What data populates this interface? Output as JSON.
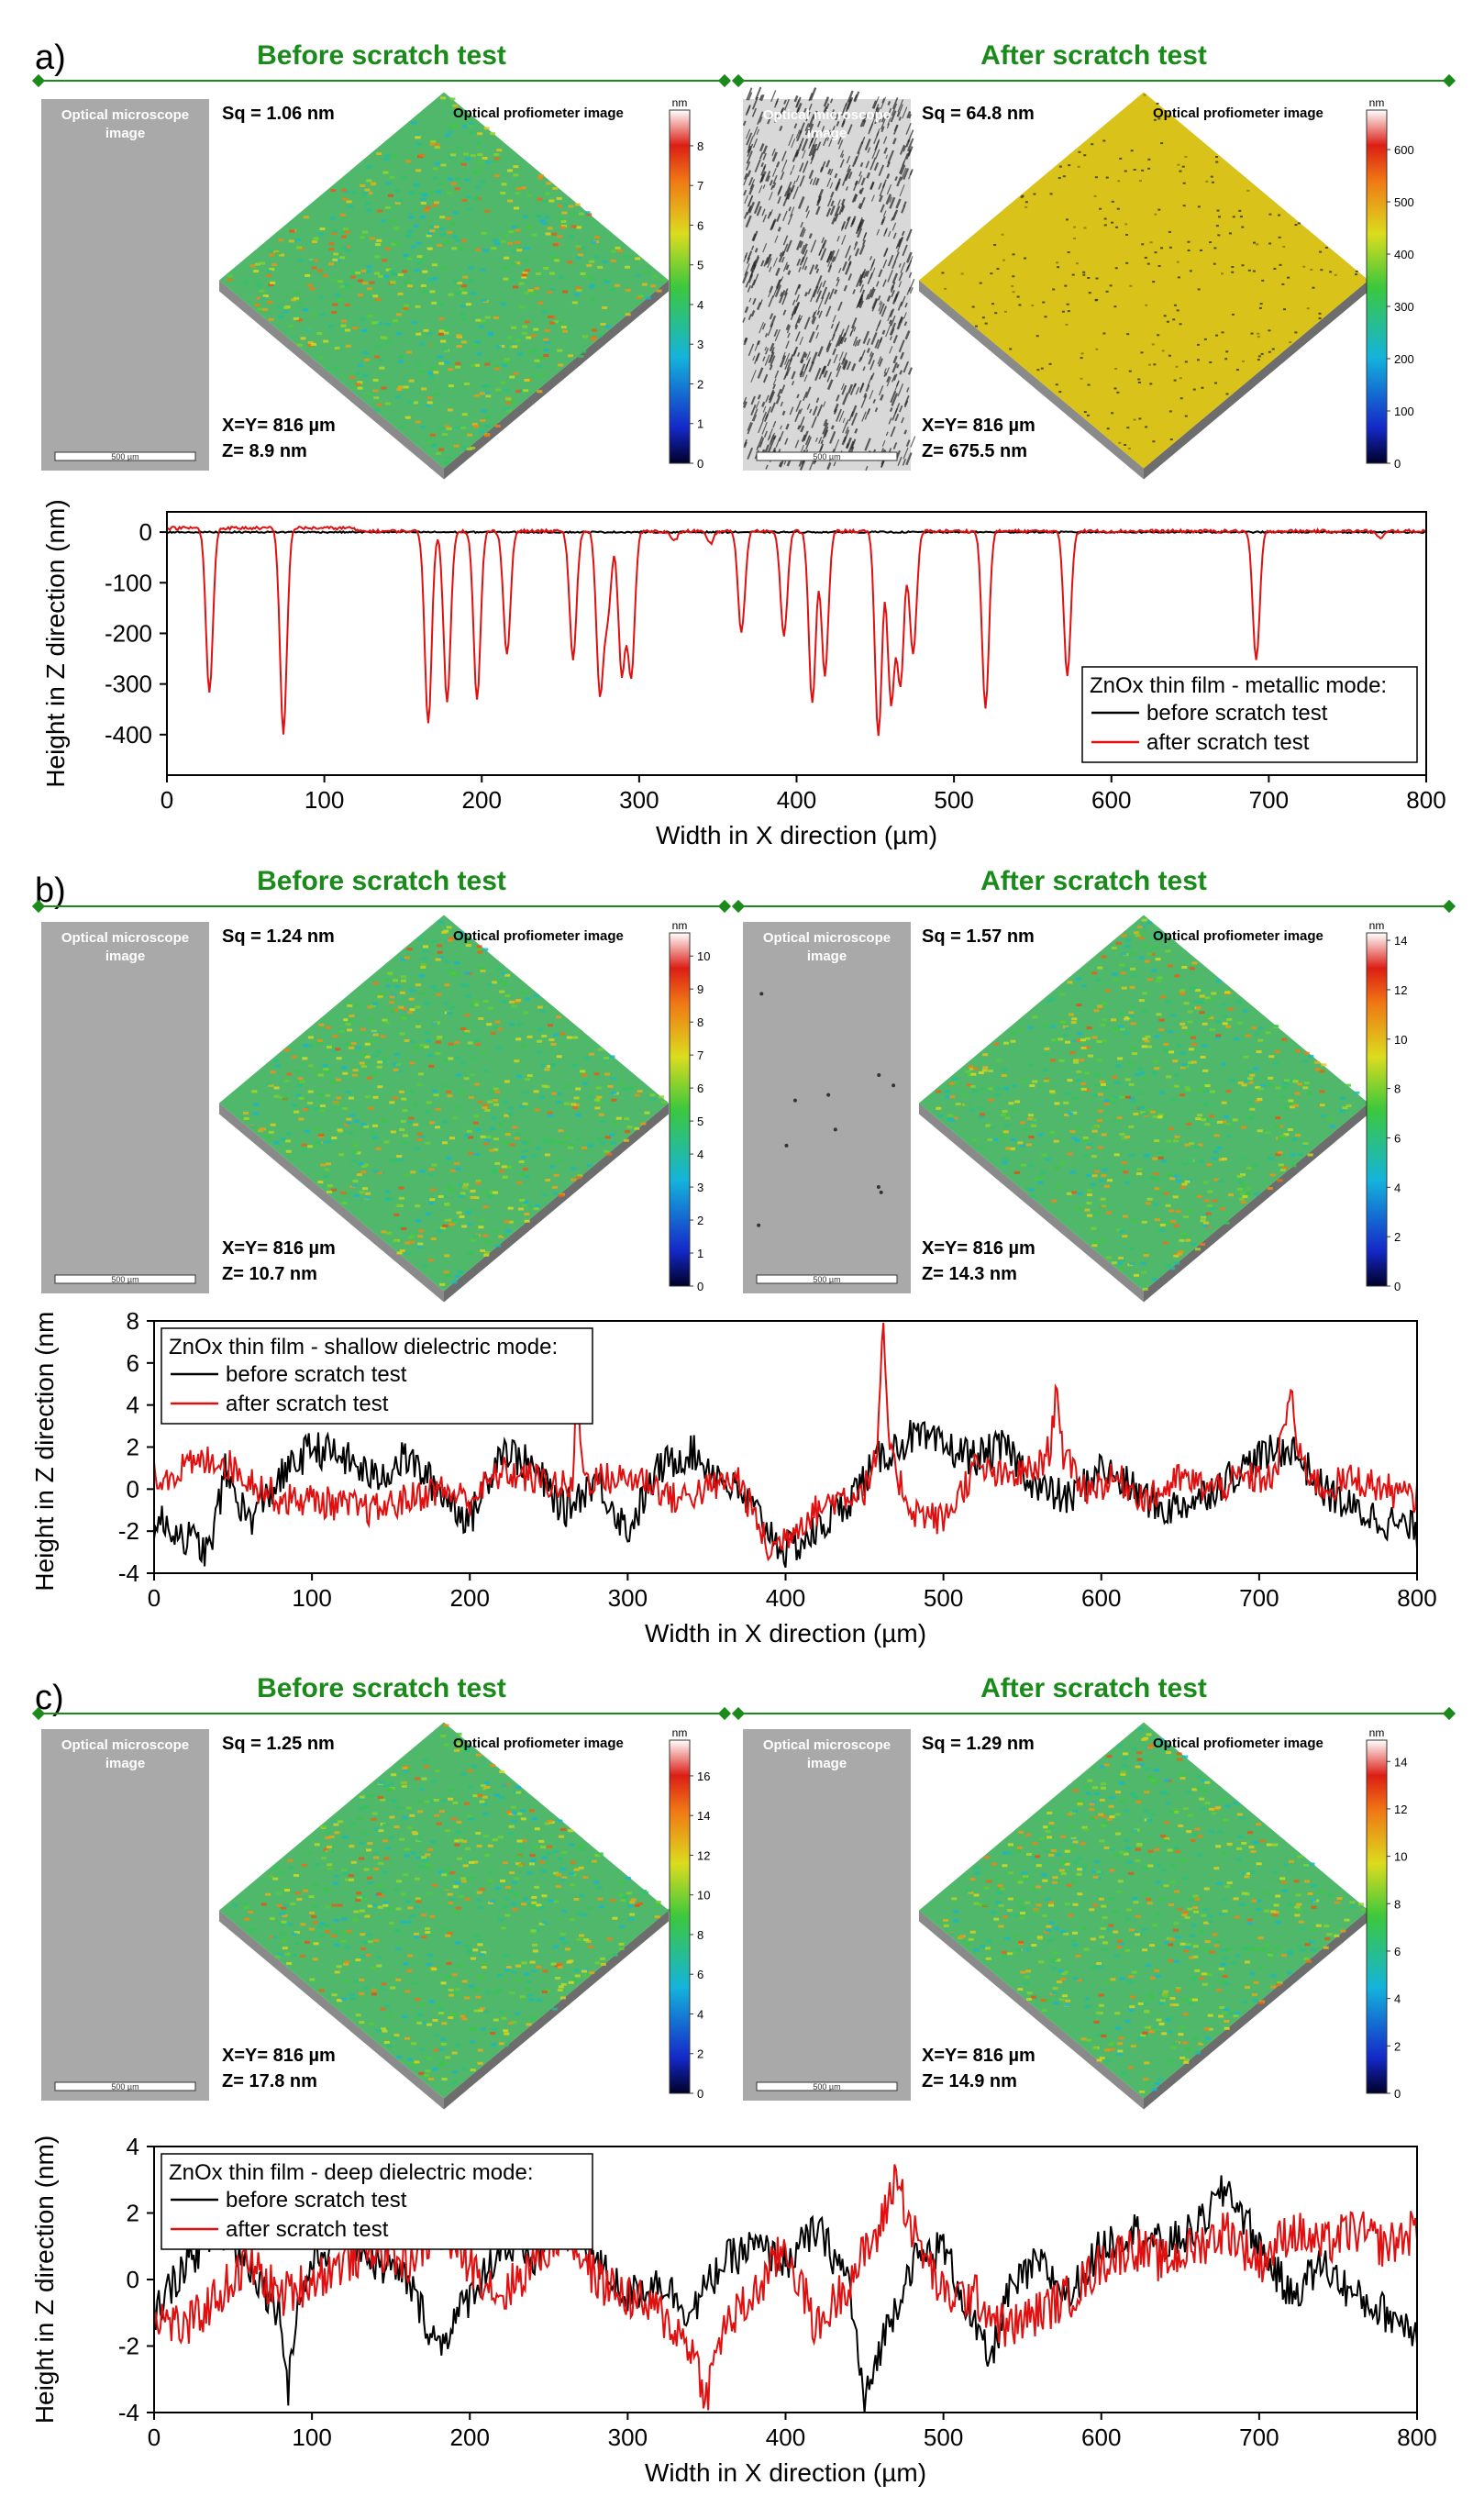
{
  "panels": [
    {
      "label": "a)",
      "before": {
        "heading": "Before scratch test",
        "micro_label": "Optical microscope image",
        "scalebar": "500 µm",
        "sq": "Sq = 1.06 nm",
        "profilo_label": "Optical profiometer image",
        "xy": "X=Y= 816 µm",
        "z": "Z= 8.9 nm",
        "cb_unit": "nm",
        "cb_ticks": [
          "0",
          "1",
          "2",
          "3",
          "4",
          "5",
          "6",
          "7",
          "8"
        ],
        "cb_max": 8.9,
        "micro_style": "plain",
        "surface_style": "rainbow"
      },
      "after": {
        "heading": "After scratch test",
        "micro_label": "Optical microscope image",
        "scalebar": "500 µm",
        "sq": "Sq = 64.8 nm",
        "profilo_label": "Optical profiometer image",
        "xy": "X=Y= 816 µm",
        "z": "Z= 675.5 nm",
        "cb_unit": "nm",
        "cb_ticks": [
          "0",
          "100",
          "200",
          "300",
          "400",
          "500",
          "600"
        ],
        "cb_max": 675.5,
        "micro_style": "scratched",
        "surface_style": "yellow"
      }
    },
    {
      "label": "b)",
      "before": {
        "heading": "Before scratch test",
        "micro_label": "Optical microscope image",
        "scalebar": "500 µm",
        "sq": "Sq = 1.24 nm",
        "profilo_label": "Optical profiometer image",
        "xy": "X=Y= 816 µm",
        "z": "Z= 10.7 nm",
        "cb_unit": "nm",
        "cb_ticks": [
          "0",
          "1",
          "2",
          "3",
          "4",
          "5",
          "6",
          "7",
          "8",
          "9",
          "10"
        ],
        "cb_max": 10.7,
        "micro_style": "plain",
        "surface_style": "rainbow"
      },
      "after": {
        "heading": "After scratch test",
        "micro_label": "Optical microscope image",
        "scalebar": "500 µm",
        "sq": "Sq = 1.57 nm",
        "profilo_label": "Optical profiometer image",
        "xy": "X=Y= 816 µm",
        "z": "Z= 14.3 nm",
        "cb_unit": "nm",
        "cb_ticks": [
          "0",
          "2",
          "4",
          "6",
          "8",
          "10",
          "12",
          "14"
        ],
        "cb_max": 14.3,
        "micro_style": "specks",
        "surface_style": "rainbow"
      }
    },
    {
      "label": "c)",
      "before": {
        "heading": "Before scratch test",
        "micro_label": "Optical microscope image",
        "scalebar": "500 µm",
        "sq": "Sq = 1.25 nm",
        "profilo_label": "Optical profiometer image",
        "xy": "X=Y= 816 µm",
        "z": "Z= 17.8 nm",
        "cb_unit": "nm",
        "cb_ticks": [
          "0",
          "2",
          "4",
          "6",
          "8",
          "10",
          "12",
          "14",
          "16"
        ],
        "cb_max": 17.8,
        "micro_style": "plain",
        "surface_style": "rainbow"
      },
      "after": {
        "heading": "After scratch test",
        "micro_label": "Optical microscope image",
        "scalebar": "500 µm",
        "sq": "Sq = 1.29 nm",
        "profilo_label": "Optical profiometer image",
        "xy": "X=Y= 816 µm",
        "z": "Z= 14.9 nm",
        "cb_unit": "nm",
        "cb_ticks": [
          "0",
          "2",
          "4",
          "6",
          "8",
          "10",
          "12",
          "14"
        ],
        "cb_max": 14.9,
        "micro_style": "plain",
        "surface_style": "rainbow"
      }
    }
  ],
  "colors": {
    "heading_green": "#1a8a1a",
    "before_line": "#000000",
    "after_line": "#e01010"
  },
  "chart_data": [
    {
      "type": "line",
      "title": "",
      "xlabel": "Width in X direction (µm)",
      "ylabel": "Height in Z direction (nm)",
      "xlim": [
        0,
        800
      ],
      "ylim": [
        -480,
        40
      ],
      "xticks": [
        0,
        100,
        200,
        300,
        400,
        500,
        600,
        700,
        800
      ],
      "yticks": [
        0,
        -100,
        -200,
        -300,
        -400
      ],
      "legend_title": "ZnOx thin film - metallic mode:",
      "legend_position": "bottom-right",
      "series": [
        {
          "name": "before scratch test",
          "color": "#000000",
          "baseline": 0,
          "noise": 1.5,
          "peaks": []
        },
        {
          "name": "after scratch test",
          "color": "#e01010",
          "baseline": 8,
          "noise": 3,
          "peaks": [
            [
              27,
              -325
            ],
            [
              74,
              -405
            ],
            [
              166,
              -380
            ],
            [
              178,
              -340
            ],
            [
              197,
              -335
            ],
            [
              216,
              -245
            ],
            [
              258,
              -255
            ],
            [
              275,
              -315
            ],
            [
              280,
              -160
            ],
            [
              289,
              -280
            ],
            [
              295,
              -285
            ],
            [
              322,
              -20
            ],
            [
              345,
              -25
            ],
            [
              365,
              -200
            ],
            [
              392,
              -205
            ],
            [
              410,
              -340
            ],
            [
              418,
              -285
            ],
            [
              452,
              -405
            ],
            [
              460,
              -335
            ],
            [
              466,
              -300
            ],
            [
              474,
              -245
            ],
            [
              520,
              -350
            ],
            [
              572,
              -285
            ],
            [
              692,
              -255
            ],
            [
              771,
              -15
            ]
          ]
        }
      ]
    },
    {
      "type": "line",
      "title": "",
      "xlabel": "Width in X direction (µm)",
      "ylabel": "Height in Z direction (nm)",
      "xlim": [
        0,
        800
      ],
      "ylim": [
        -4,
        8
      ],
      "xticks": [
        0,
        100,
        200,
        300,
        400,
        500,
        600,
        700,
        800
      ],
      "yticks": [
        -4,
        -2,
        0,
        2,
        4,
        6,
        8
      ],
      "legend_title": "ZnOx thin film - shallow dielectric mode:",
      "legend_position": "top-left",
      "series": [
        {
          "name": "before scratch test",
          "color": "#000000",
          "anchors": [
            [
              0,
              -1.5
            ],
            [
              15,
              -2
            ],
            [
              35,
              -3
            ],
            [
              45,
              0.8
            ],
            [
              60,
              -1.5
            ],
            [
              80,
              0.5
            ],
            [
              100,
              2
            ],
            [
              120,
              1.5
            ],
            [
              140,
              0.5
            ],
            [
              160,
              1.5
            ],
            [
              180,
              0
            ],
            [
              200,
              -1.5
            ],
            [
              220,
              2
            ],
            [
              240,
              1
            ],
            [
              260,
              -1
            ],
            [
              280,
              0.5
            ],
            [
              300,
              -2
            ],
            [
              320,
              1
            ],
            [
              340,
              1.8
            ],
            [
              360,
              0.5
            ],
            [
              380,
              -1
            ],
            [
              400,
              -3
            ],
            [
              420,
              -2
            ],
            [
              440,
              -0.5
            ],
            [
              460,
              1.5
            ],
            [
              480,
              2.5
            ],
            [
              500,
              2
            ],
            [
              520,
              1.5
            ],
            [
              540,
              2
            ],
            [
              560,
              0
            ],
            [
              580,
              -0.5
            ],
            [
              600,
              1
            ],
            [
              620,
              0
            ],
            [
              640,
              -1
            ],
            [
              660,
              -0.5
            ],
            [
              680,
              0.5
            ],
            [
              700,
              1.5
            ],
            [
              720,
              2
            ],
            [
              740,
              0
            ],
            [
              760,
              -1
            ],
            [
              780,
              -1.5
            ],
            [
              800,
              -2
            ]
          ],
          "noise": 0.9
        },
        {
          "name": "after scratch test",
          "color": "#e01010",
          "anchors": [
            [
              0,
              0.5
            ],
            [
              20,
              1
            ],
            [
              40,
              1.5
            ],
            [
              60,
              0.5
            ],
            [
              80,
              -0.5
            ],
            [
              100,
              -0.5
            ],
            [
              120,
              -0.8
            ],
            [
              140,
              -1
            ],
            [
              160,
              -0.5
            ],
            [
              180,
              0
            ],
            [
              200,
              -0.5
            ],
            [
              220,
              0.8
            ],
            [
              240,
              0.5
            ],
            [
              265,
              0
            ],
            [
              268,
              5.2
            ],
            [
              272,
              0.5
            ],
            [
              290,
              0.5
            ],
            [
              310,
              0.5
            ],
            [
              330,
              -0.5
            ],
            [
              350,
              0
            ],
            [
              370,
              0.5
            ],
            [
              390,
              -3
            ],
            [
              410,
              -1.5
            ],
            [
              430,
              -0.5
            ],
            [
              450,
              0
            ],
            [
              458,
              1.5
            ],
            [
              462,
              7.8
            ],
            [
              466,
              1.5
            ],
            [
              480,
              -1
            ],
            [
              500,
              -1.5
            ],
            [
              520,
              1
            ],
            [
              540,
              0.5
            ],
            [
              560,
              1
            ],
            [
              568,
              2
            ],
            [
              572,
              5.2
            ],
            [
              576,
              1.5
            ],
            [
              590,
              0
            ],
            [
              610,
              0.5
            ],
            [
              630,
              -0.5
            ],
            [
              650,
              0.5
            ],
            [
              670,
              0
            ],
            [
              690,
              0.5
            ],
            [
              710,
              0.5
            ],
            [
              720,
              4.8
            ],
            [
              725,
              1.5
            ],
            [
              740,
              0
            ],
            [
              760,
              0.5
            ],
            [
              780,
              0
            ],
            [
              800,
              -0.5
            ]
          ],
          "noise": 0.8
        }
      ]
    },
    {
      "type": "line",
      "title": "",
      "xlabel": "Width in X direction (µm)",
      "ylabel": "Height in Z direction (nm)",
      "xlim": [
        0,
        800
      ],
      "ylim": [
        -4,
        4
      ],
      "xticks": [
        0,
        100,
        200,
        300,
        400,
        500,
        600,
        700,
        800
      ],
      "yticks": [
        -4,
        -2,
        0,
        2,
        4
      ],
      "legend_title": "ZnOx thin film - deep dielectric mode:",
      "legend_position": "top-left",
      "series": [
        {
          "name": "before scratch test",
          "color": "#000000",
          "anchors": [
            [
              0,
              -1
            ],
            [
              20,
              0.5
            ],
            [
              40,
              1.5
            ],
            [
              60,
              0.5
            ],
            [
              80,
              -1
            ],
            [
              85,
              -3.2
            ],
            [
              90,
              -1
            ],
            [
              100,
              0.5
            ],
            [
              120,
              1.5
            ],
            [
              140,
              0.5
            ],
            [
              160,
              0
            ],
            [
              180,
              -2
            ],
            [
              200,
              -0.5
            ],
            [
              220,
              1
            ],
            [
              240,
              0.5
            ],
            [
              260,
              2.5
            ],
            [
              280,
              0.5
            ],
            [
              300,
              -0.5
            ],
            [
              320,
              0
            ],
            [
              340,
              -1
            ],
            [
              360,
              0.5
            ],
            [
              380,
              1
            ],
            [
              400,
              0.5
            ],
            [
              420,
              1.5
            ],
            [
              440,
              0
            ],
            [
              450,
              -3.8
            ],
            [
              460,
              -2
            ],
            [
              480,
              0.5
            ],
            [
              500,
              1
            ],
            [
              520,
              -1.5
            ],
            [
              530,
              -2.5
            ],
            [
              540,
              -0.5
            ],
            [
              560,
              0.5
            ],
            [
              580,
              -0.5
            ],
            [
              600,
              1
            ],
            [
              620,
              1.5
            ],
            [
              640,
              1
            ],
            [
              660,
              1.5
            ],
            [
              680,
              2.8
            ],
            [
              700,
              1
            ],
            [
              720,
              -0.5
            ],
            [
              740,
              0.5
            ],
            [
              760,
              -0.5
            ],
            [
              780,
              -1
            ],
            [
              800,
              -1.5
            ]
          ],
          "noise": 0.6
        },
        {
          "name": "after scratch test",
          "color": "#e01010",
          "anchors": [
            [
              0,
              -1
            ],
            [
              20,
              -1.5
            ],
            [
              40,
              -0.5
            ],
            [
              60,
              0.5
            ],
            [
              80,
              -0.5
            ],
            [
              100,
              0
            ],
            [
              120,
              0.5
            ],
            [
              140,
              1
            ],
            [
              160,
              0.5
            ],
            [
              180,
              1.5
            ],
            [
              200,
              0.5
            ],
            [
              220,
              -0.5
            ],
            [
              240,
              0.5
            ],
            [
              260,
              1.5
            ],
            [
              280,
              0
            ],
            [
              300,
              -0.5
            ],
            [
              320,
              -1
            ],
            [
              340,
              -2
            ],
            [
              350,
              -3.5
            ],
            [
              360,
              -1.5
            ],
            [
              380,
              -0.5
            ],
            [
              400,
              1
            ],
            [
              420,
              -1.5
            ],
            [
              440,
              0
            ],
            [
              460,
              1.5
            ],
            [
              470,
              3.2
            ],
            [
              480,
              1.5
            ],
            [
              500,
              -0.5
            ],
            [
              520,
              -0.5
            ],
            [
              540,
              -1.5
            ],
            [
              560,
              -1
            ],
            [
              580,
              -0.5
            ],
            [
              600,
              0.5
            ],
            [
              620,
              1
            ],
            [
              640,
              0.5
            ],
            [
              660,
              1
            ],
            [
              680,
              1.5
            ],
            [
              700,
              0.5
            ],
            [
              720,
              1.5
            ],
            [
              740,
              1
            ],
            [
              760,
              1.5
            ],
            [
              780,
              1
            ],
            [
              800,
              1.5
            ]
          ],
          "noise": 0.7
        }
      ]
    }
  ]
}
